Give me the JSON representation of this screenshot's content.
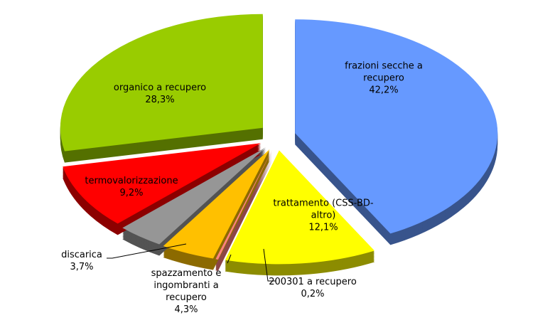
{
  "chart_data": {
    "type": "pie",
    "categories": [
      "frazioni secche a recupero",
      "trattamento (CSS-BD-altro)",
      "200301 a recupero",
      "spazzamento e ingombranti a recupero",
      "discarica",
      "termovalorizzazione",
      "organico a recupero"
    ],
    "values": [
      42.2,
      12.1,
      0.2,
      4.3,
      3.7,
      9.2,
      28.3
    ],
    "value_labels": [
      "42,2%",
      "12,1%",
      "0,2%",
      "4,3%",
      "3,7%",
      "9,2%",
      "28,3%"
    ],
    "colors": [
      "#6699ff",
      "#ffff00",
      "#ff8080",
      "#ffc000",
      "#969696",
      "#ff0000",
      "#99cc00"
    ]
  }
}
